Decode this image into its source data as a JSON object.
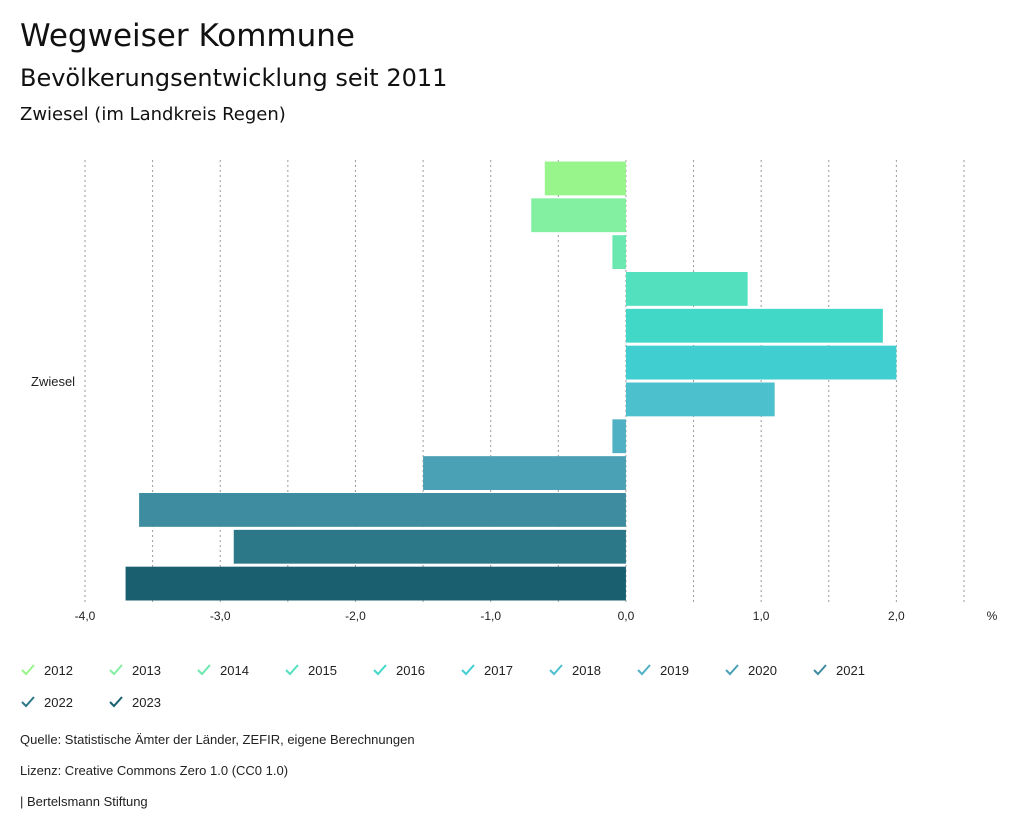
{
  "header": {
    "title": "Wegweiser Kommune",
    "subtitle": "Bevölkerungsentwicklung seit 2011",
    "region": "Zwiesel (im Landkreis Regen)"
  },
  "chart_data": {
    "type": "bar",
    "orientation": "horizontal",
    "categories": [
      "Zwiesel"
    ],
    "series": [
      {
        "name": "2012",
        "values": [
          -0.6
        ],
        "color": "#98f58c"
      },
      {
        "name": "2013",
        "values": [
          -0.7
        ],
        "color": "#82f0a0"
      },
      {
        "name": "2014",
        "values": [
          -0.1
        ],
        "color": "#6ae8af"
      },
      {
        "name": "2015",
        "values": [
          0.9
        ],
        "color": "#52e0bf"
      },
      {
        "name": "2016",
        "values": [
          1.9
        ],
        "color": "#42d8c8"
      },
      {
        "name": "2017",
        "values": [
          2.0
        ],
        "color": "#40ced0"
      },
      {
        "name": "2018",
        "values": [
          1.1
        ],
        "color": "#4cc0cc"
      },
      {
        "name": "2019",
        "values": [
          -0.1
        ],
        "color": "#50b0c4"
      },
      {
        "name": "2020",
        "values": [
          -1.5
        ],
        "color": "#4aa0b4"
      },
      {
        "name": "2021",
        "values": [
          -3.6
        ],
        "color": "#3e8ca0"
      },
      {
        "name": "2022",
        "values": [
          -2.9
        ],
        "color": "#2c7888"
      },
      {
        "name": "2023",
        "values": [
          -3.7
        ],
        "color": "#1a5f70"
      }
    ],
    "xlim": [
      -4.0,
      2.5
    ],
    "xticks": [
      -4.0,
      -3.0,
      -2.0,
      -1.0,
      0.0,
      1.0,
      2.0
    ],
    "xtick_labels": [
      "-4,0",
      "-3,0",
      "-2,0",
      "-1,0",
      "0,0",
      "1,0",
      "2,0"
    ],
    "xlabel": "%",
    "grid": true,
    "legend": "bottom"
  },
  "footer": {
    "source": "Quelle: Statistische Ämter der Länder, ZEFIR, eigene Berechnungen",
    "license": "Lizenz: Creative Commons Zero 1.0 (CC0 1.0)",
    "publisher": "| Bertelsmann Stiftung"
  }
}
